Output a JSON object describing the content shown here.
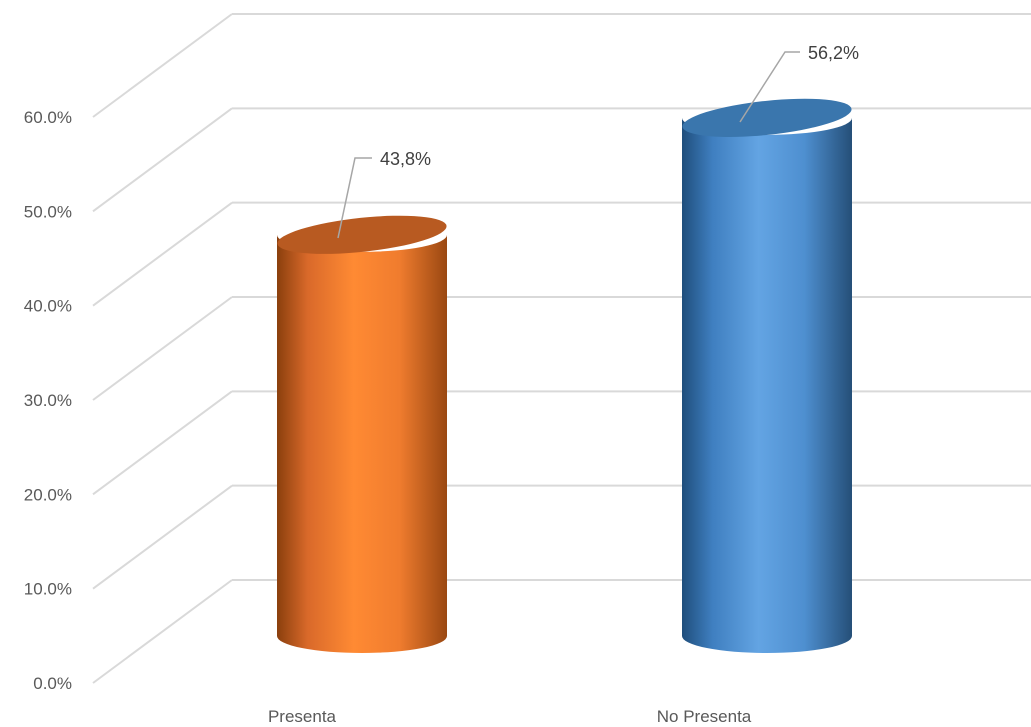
{
  "chart_data": {
    "type": "bar",
    "style": "3d-cylinder",
    "categories": [
      "Presenta",
      "No Presenta"
    ],
    "values": [
      43.8,
      56.2
    ],
    "data_labels": [
      "43,8%",
      "56,2%"
    ],
    "colors": [
      "#F28530",
      "#4A8FD6"
    ],
    "ylim": [
      0,
      60
    ],
    "yticks": [
      0,
      10,
      20,
      30,
      40,
      50,
      60
    ],
    "ytick_labels": [
      "0.0%",
      "10.0%",
      "20.0%",
      "30.0%",
      "40.0%",
      "50.0%",
      "60.0%"
    ],
    "grid": true,
    "legend": "none",
    "title": "",
    "xlabel": "",
    "ylabel": ""
  }
}
